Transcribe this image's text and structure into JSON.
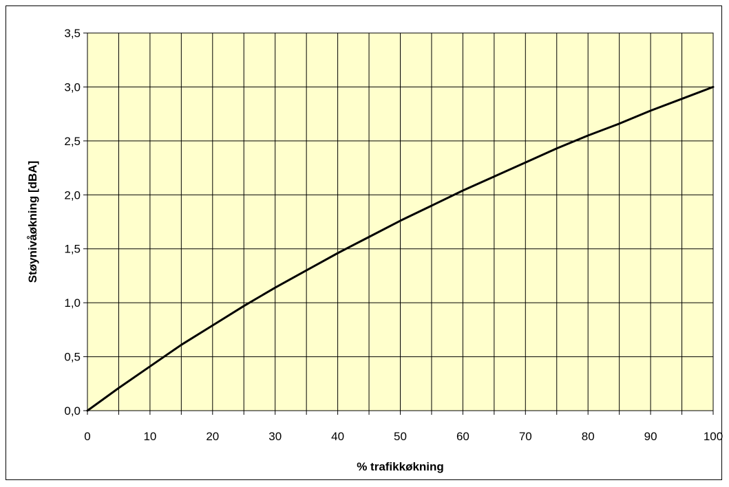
{
  "chart_data": {
    "type": "line",
    "title": "",
    "xlabel": "% trafikkøkning",
    "ylabel": "Støynivåøkning [dBA]",
    "xlim": [
      0,
      100
    ],
    "ylim": [
      0,
      3.5
    ],
    "x_ticks": [
      "0",
      "10",
      "20",
      "30",
      "40",
      "50",
      "60",
      "70",
      "80",
      "90",
      "100"
    ],
    "y_ticks": [
      "0,0",
      "0,5",
      "1,0",
      "1,5",
      "2,0",
      "2,5",
      "3,0",
      "3,5"
    ],
    "grid": true,
    "legend": "none",
    "plot_background": "#ffffcc",
    "line_color": "#000000",
    "series": [
      {
        "x": [
          0,
          5,
          10,
          15,
          20,
          25,
          30,
          35,
          40,
          45,
          50,
          55,
          60,
          65,
          70,
          75,
          80,
          85,
          90,
          95,
          100
        ],
        "values": [
          0.0,
          0.21,
          0.41,
          0.61,
          0.79,
          0.97,
          1.14,
          1.3,
          1.46,
          1.61,
          1.76,
          1.9,
          2.04,
          2.17,
          2.3,
          2.43,
          2.55,
          2.66,
          2.78,
          2.89,
          3.0
        ]
      }
    ]
  }
}
